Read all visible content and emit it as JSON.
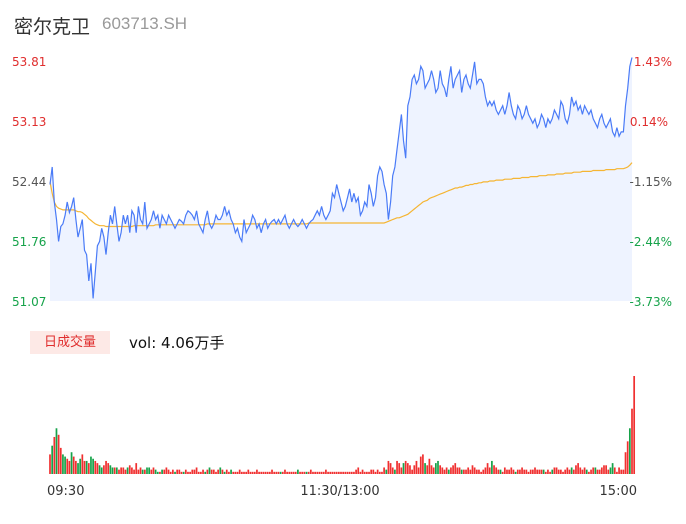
{
  "header": {
    "name": "密尔克卫",
    "code": "603713.SH"
  },
  "volume_panel": {
    "tag": "日成交量",
    "label": "vol: 4.06万手"
  },
  "chart_data": {
    "type": "line",
    "series": [],
    "y_ticks_price": [
      "53.81",
      "53.13",
      "52.44",
      "51.76",
      "51.07"
    ],
    "y_ticks_percent": [
      "1.43%",
      "0.14%",
      "-1.15%",
      "-2.44%",
      "-3.73%"
    ],
    "x_ticks": [
      "09:30",
      "11:30/13:00",
      "15:00"
    ],
    "ylim": [
      51.07,
      53.81
    ],
    "prev_close": 53.05,
    "price": [
      52.4,
      52.6,
      52.2,
      52.0,
      51.75,
      51.92,
      51.95,
      52.05,
      52.2,
      52.08,
      52.15,
      52.25,
      52.0,
      51.8,
      51.9,
      52.0,
      51.65,
      51.6,
      51.3,
      51.5,
      51.1,
      51.4,
      51.7,
      51.75,
      51.9,
      51.8,
      51.6,
      51.85,
      52.05,
      51.95,
      52.15,
      51.95,
      51.75,
      51.85,
      52.05,
      51.95,
      52.05,
      51.85,
      52.1,
      52.05,
      51.85,
      52.15,
      52.0,
      51.95,
      52.2,
      51.9,
      51.95,
      52.0,
      52.1,
      52.0,
      52.05,
      51.9,
      52.05,
      52.0,
      51.95,
      52.05,
      52.0,
      51.95,
      51.9,
      51.95,
      52.0,
      51.98,
      51.95,
      52.05,
      52.1,
      52.08,
      52.05,
      52.0,
      52.1,
      51.95,
      51.9,
      51.85,
      52.0,
      52.1,
      51.95,
      51.9,
      51.95,
      52.05,
      52.0,
      52.0,
      52.05,
      52.15,
      52.05,
      52.1,
      52.0,
      51.95,
      51.85,
      51.9,
      51.8,
      51.75,
      52.0,
      51.85,
      51.9,
      51.95,
      52.05,
      52.0,
      51.9,
      51.95,
      51.85,
      51.95,
      52.0,
      51.9,
      51.95,
      51.98,
      52.0,
      51.95,
      52.0,
      51.95,
      52.0,
      52.05,
      51.95,
      51.9,
      51.95,
      52.0,
      51.95,
      51.92,
      51.95,
      52.0,
      51.95,
      51.9,
      51.95,
      51.98,
      52.0,
      52.05,
      52.1,
      52.05,
      52.15,
      52.05,
      52.0,
      52.05,
      52.1,
      52.3,
      52.25,
      52.4,
      52.3,
      52.2,
      52.1,
      52.15,
      52.25,
      52.35,
      52.2,
      52.3,
      52.2,
      52.25,
      52.05,
      52.1,
      52.2,
      52.15,
      52.4,
      52.3,
      52.15,
      52.25,
      52.5,
      52.6,
      52.55,
      52.4,
      52.3,
      52.0,
      52.2,
      52.5,
      52.6,
      52.8,
      53.0,
      53.2,
      52.9,
      52.7,
      53.3,
      53.4,
      53.6,
      53.65,
      53.55,
      53.6,
      53.75,
      53.7,
      53.5,
      53.55,
      53.6,
      53.7,
      53.6,
      53.45,
      53.5,
      53.7,
      53.55,
      53.5,
      53.4,
      53.6,
      53.75,
      53.5,
      53.6,
      53.65,
      53.7,
      53.45,
      53.6,
      53.65,
      53.55,
      53.5,
      53.65,
      53.8,
      53.55,
      53.6,
      53.6,
      53.55,
      53.4,
      53.3,
      53.35,
      53.3,
      53.35,
      53.25,
      53.2,
      53.25,
      53.3,
      53.2,
      53.3,
      53.45,
      53.3,
      53.2,
      53.15,
      53.3,
      53.25,
      53.15,
      53.2,
      53.3,
      53.2,
      53.15,
      53.1,
      53.15,
      53.05,
      53.1,
      53.2,
      53.15,
      53.05,
      53.15,
      53.1,
      53.15,
      53.25,
      53.2,
      53.15,
      53.35,
      53.3,
      53.15,
      53.1,
      53.2,
      53.4,
      53.3,
      53.35,
      53.25,
      53.3,
      53.2,
      53.3,
      53.25,
      53.2,
      53.25,
      53.15,
      53.1,
      53.05,
      53.15,
      53.2,
      53.1,
      53.05,
      53.1,
      53.15,
      53.0,
      52.95,
      53.05,
      52.95,
      53.0,
      53.0,
      53.3,
      53.5,
      53.75,
      53.85
    ],
    "avg": [
      52.43,
      52.3,
      52.2,
      52.15,
      52.13,
      52.12,
      52.11,
      52.11,
      52.11,
      52.11,
      52.11,
      52.11,
      52.1,
      52.09,
      52.09,
      52.08,
      52.06,
      52.04,
      52.01,
      51.99,
      51.97,
      51.95,
      51.94,
      51.93,
      51.93,
      51.93,
      51.92,
      51.92,
      51.92,
      51.92,
      51.92,
      51.92,
      51.92,
      51.92,
      51.92,
      51.92,
      51.92,
      51.92,
      51.92,
      51.93,
      51.93,
      51.93,
      51.93,
      51.93,
      51.93,
      51.93,
      51.93,
      51.93,
      51.93,
      51.94,
      51.94,
      51.94,
      51.94,
      51.94,
      51.94,
      51.94,
      51.94,
      51.94,
      51.94,
      51.94,
      51.94,
      51.94,
      51.94,
      51.94,
      51.94,
      51.94,
      51.94,
      51.94,
      51.94,
      51.94,
      51.94,
      51.94,
      51.94,
      51.95,
      51.95,
      51.95,
      51.95,
      51.95,
      51.95,
      51.95,
      51.95,
      51.95,
      51.95,
      51.95,
      51.95,
      51.95,
      51.95,
      51.95,
      51.95,
      51.95,
      51.95,
      51.95,
      51.95,
      51.95,
      51.95,
      51.95,
      51.95,
      51.95,
      51.95,
      51.95,
      51.95,
      51.95,
      51.95,
      51.95,
      51.95,
      51.95,
      51.95,
      51.95,
      51.95,
      51.95,
      51.95,
      51.95,
      51.95,
      51.95,
      51.95,
      51.95,
      51.95,
      51.95,
      51.95,
      51.95,
      51.96,
      51.96,
      51.96,
      51.96,
      51.96,
      51.96,
      51.96,
      51.96,
      51.96,
      51.96,
      51.96,
      51.96,
      51.96,
      51.96,
      51.96,
      51.96,
      51.96,
      51.96,
      51.96,
      51.96,
      51.96,
      51.96,
      51.96,
      51.96,
      51.96,
      51.96,
      51.96,
      51.96,
      51.96,
      51.96,
      51.96,
      51.96,
      51.96,
      51.96,
      51.96,
      51.96,
      51.97,
      51.98,
      51.99,
      52.0,
      52.01,
      52.02,
      52.02,
      52.03,
      52.04,
      52.05,
      52.06,
      52.08,
      52.1,
      52.12,
      52.14,
      52.16,
      52.18,
      52.2,
      52.21,
      52.22,
      52.24,
      52.25,
      52.26,
      52.27,
      52.28,
      52.29,
      52.3,
      52.31,
      52.32,
      52.33,
      52.34,
      52.35,
      52.36,
      52.36,
      52.37,
      52.37,
      52.38,
      52.39,
      52.39,
      52.4,
      52.4,
      52.41,
      52.41,
      52.42,
      52.42,
      52.43,
      52.43,
      52.43,
      52.44,
      52.44,
      52.44,
      52.45,
      52.45,
      52.45,
      52.45,
      52.46,
      52.46,
      52.46,
      52.46,
      52.47,
      52.47,
      52.47,
      52.47,
      52.48,
      52.48,
      52.48,
      52.48,
      52.49,
      52.49,
      52.49,
      52.49,
      52.5,
      52.5,
      52.5,
      52.5,
      52.51,
      52.51,
      52.51,
      52.51,
      52.52,
      52.52,
      52.52,
      52.52,
      52.53,
      52.53,
      52.53,
      52.53,
      52.54,
      52.54,
      52.54,
      52.54,
      52.55,
      52.55,
      52.55,
      52.55,
      52.55,
      52.56,
      52.56,
      52.56,
      52.56,
      52.56,
      52.56,
      52.57,
      52.57,
      52.57,
      52.57,
      52.57,
      52.58,
      52.58,
      52.58,
      52.58,
      52.59,
      52.6,
      52.62,
      52.65
    ],
    "volume": [
      9,
      13,
      17,
      21,
      18,
      12,
      9,
      8,
      7,
      6,
      10,
      8,
      6,
      5,
      7,
      9,
      6,
      6,
      5,
      8,
      7,
      6,
      5,
      4,
      3,
      4,
      6,
      5,
      4,
      3,
      3,
      3,
      2,
      3,
      3,
      2,
      3,
      4,
      3,
      2,
      5,
      2,
      3,
      2,
      2,
      3,
      3,
      2,
      3,
      2,
      1,
      1,
      2,
      2,
      3,
      2,
      1,
      2,
      1,
      2,
      2,
      1,
      1,
      2,
      1,
      1,
      2,
      2,
      3,
      1,
      1,
      2,
      1,
      2,
      3,
      2,
      2,
      1,
      2,
      3,
      2,
      1,
      2,
      1,
      2,
      1,
      1,
      1,
      2,
      1,
      1,
      1,
      2,
      1,
      1,
      1,
      2,
      1,
      1,
      1,
      1,
      1,
      1,
      2,
      1,
      1,
      1,
      1,
      1,
      2,
      1,
      1,
      1,
      1,
      1,
      2,
      1,
      1,
      1,
      1,
      1,
      2,
      1,
      1,
      1,
      1,
      1,
      1,
      2,
      1,
      1,
      1,
      1,
      1,
      1,
      1,
      1,
      1,
      1,
      1,
      1,
      1,
      2,
      3,
      1,
      2,
      1,
      1,
      1,
      2,
      2,
      1,
      2,
      1,
      1,
      3,
      2,
      6,
      5,
      3,
      2,
      6,
      5,
      3,
      5,
      6,
      5,
      4,
      2,
      4,
      6,
      3,
      8,
      9,
      5,
      4,
      7,
      4,
      3,
      5,
      6,
      4,
      3,
      2,
      3,
      2,
      3,
      4,
      5,
      3,
      3,
      2,
      2,
      2,
      3,
      2,
      4,
      3,
      2,
      2,
      1,
      2,
      3,
      5,
      3,
      6,
      4,
      3,
      2,
      2,
      1,
      3,
      2,
      2,
      3,
      2,
      1,
      2,
      2,
      3,
      2,
      2,
      1,
      2,
      2,
      3,
      2,
      2,
      2,
      2,
      1,
      2,
      1,
      2,
      3,
      3,
      2,
      2,
      1,
      2,
      3,
      2,
      3,
      2,
      4,
      5,
      3,
      2,
      3,
      2,
      1,
      2,
      3,
      3,
      2,
      2,
      3,
      4,
      4,
      2,
      3,
      5,
      3,
      1,
      3,
      2,
      2,
      10,
      15,
      21,
      30,
      45
    ],
    "volume_dir": [
      1,
      -1,
      1,
      -1,
      1,
      1,
      -1,
      -1,
      1,
      1,
      -1,
      1,
      1,
      -1,
      -1,
      1,
      1,
      -1,
      1,
      -1,
      -1,
      1,
      1,
      -1,
      -1,
      1,
      1,
      1,
      -1,
      -1,
      1,
      -1,
      1,
      1,
      1,
      1,
      -1,
      1,
      1,
      1,
      1,
      1,
      1,
      -1,
      1,
      -1,
      -1,
      1,
      1,
      -1,
      -1,
      1,
      -1,
      1,
      1,
      1,
      1,
      1,
      -1,
      1,
      1,
      1,
      -1,
      1,
      1,
      1,
      1,
      1,
      1,
      1,
      1,
      1,
      -1,
      1,
      -1,
      1,
      1,
      1,
      1,
      -1,
      1,
      -1,
      1,
      1,
      -1,
      1,
      1,
      1,
      1,
      1,
      1,
      1,
      1,
      1,
      1,
      1,
      1,
      1,
      1,
      1,
      1,
      1,
      1,
      1,
      1,
      1,
      1,
      -1,
      1,
      1,
      1,
      1,
      1,
      1,
      1,
      -1,
      1,
      1,
      1,
      -1,
      1,
      1,
      1,
      1,
      1,
      1,
      1,
      1,
      1,
      1,
      1,
      1,
      1,
      1,
      1,
      1,
      1,
      1,
      1,
      1,
      1,
      1,
      1,
      1,
      1,
      1,
      1,
      1,
      1,
      1,
      1,
      1,
      1,
      1,
      1,
      1,
      -1,
      1,
      1,
      1,
      -1,
      1,
      1,
      1,
      -1,
      1,
      1,
      1,
      1,
      1,
      1,
      1,
      1,
      1,
      -1,
      1,
      1,
      1,
      1,
      -1,
      -1,
      1,
      1,
      1,
      1,
      -1,
      1,
      1,
      1,
      1,
      1,
      -1,
      1,
      1,
      1,
      1,
      1,
      1,
      1,
      1,
      1,
      1,
      1,
      1,
      1,
      -1,
      1,
      1,
      1,
      -1,
      1,
      1,
      1,
      1,
      1,
      1,
      -1,
      1,
      1,
      1,
      1,
      1,
      1,
      1,
      1,
      1,
      1,
      1,
      1,
      -1,
      1,
      1,
      1,
      -1,
      1,
      1,
      1,
      1,
      1,
      1,
      1,
      1,
      -1,
      1,
      1,
      1,
      1,
      1,
      1,
      -1,
      1,
      1,
      1,
      -1,
      1,
      1,
      1,
      1,
      1,
      1,
      -1,
      -1,
      1,
      1,
      1,
      1,
      1,
      1,
      1,
      -1,
      1,
      1,
      1,
      -1,
      1,
      -1,
      1,
      1,
      1,
      1,
      -1
    ],
    "colors": {
      "price_line": "#4a7bf7",
      "price_fill": "#eef3ff",
      "avg_line": "#f5b533",
      "up": "#f03030",
      "down": "#16a34a",
      "axis_text": "#555555"
    }
  }
}
